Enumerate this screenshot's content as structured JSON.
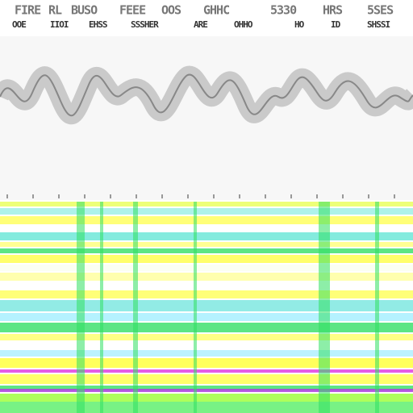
{
  "header": {
    "top_row": [
      "FIRE",
      "RL",
      "BUSO",
      "FEEE",
      "OOS",
      "GHHC",
      "5330",
      "HRS",
      "5SES"
    ],
    "bottom_row": [
      "OOE",
      "IIOI",
      "EHSS",
      "SSSHER",
      "ARE",
      "OHHO",
      "HO",
      "ID",
      "SHSSI"
    ]
  }
}
